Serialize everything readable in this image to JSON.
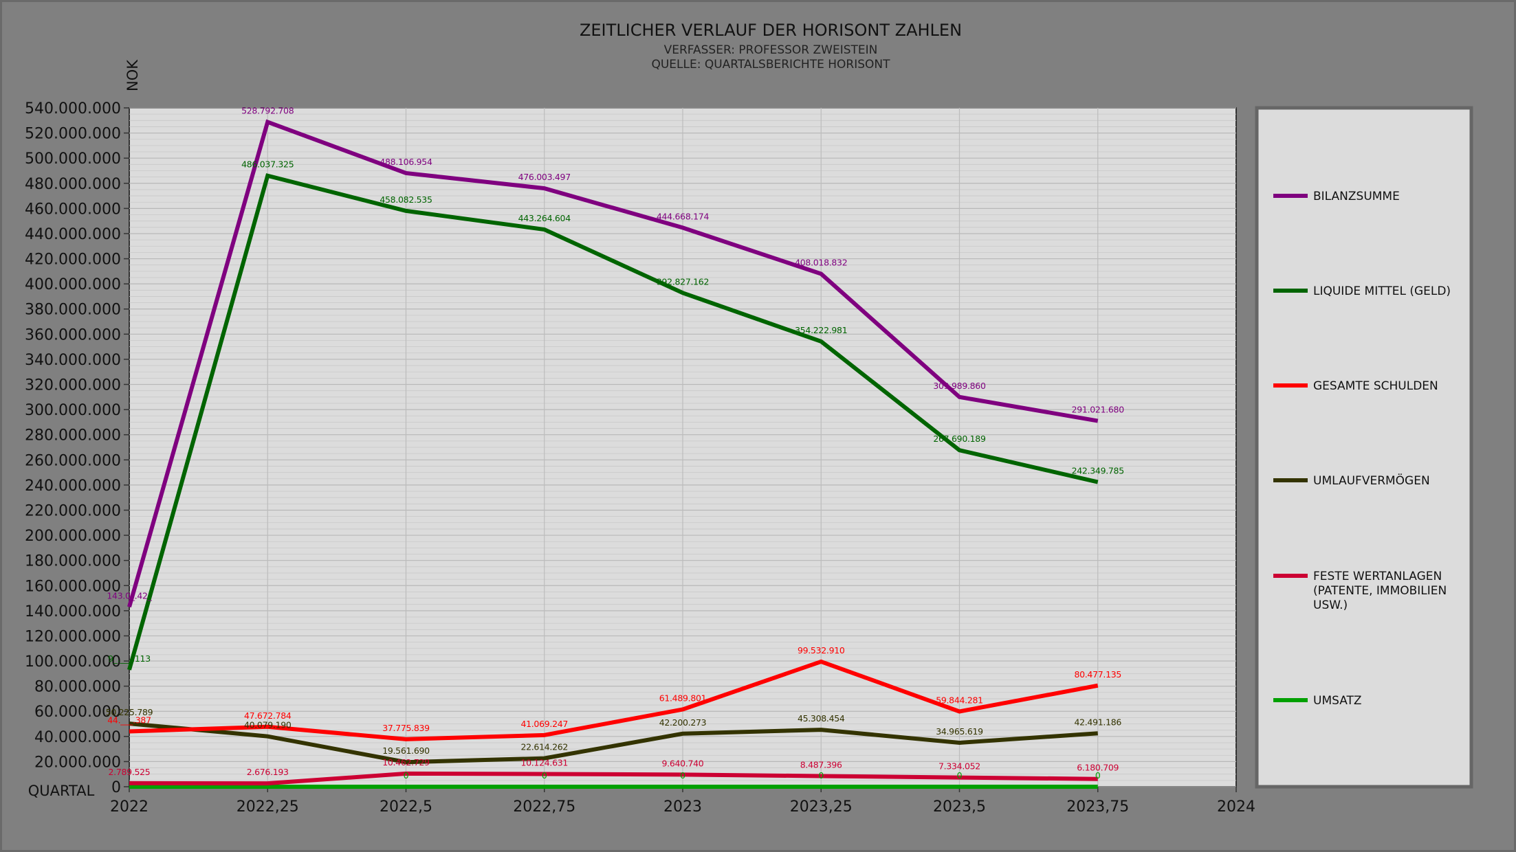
{
  "chart_data": {
    "type": "line",
    "title": "ZEITLICHER VERLAUF DER HORISONT ZAHLEN",
    "subtitles": [
      "VERFASSER: PROFESSOR ZWEISTEIN",
      "QUELLE: QUARTALSBERICHTE HORISONT"
    ],
    "xlabel": "QUARTAL",
    "ylabel": "NOK",
    "xlim": [
      2022,
      2024
    ],
    "ylim": [
      0,
      540000000
    ],
    "x_ticks": [
      "2022",
      "2022,25",
      "2022,5",
      "2022,75",
      "2023",
      "2023,25",
      "2023,5",
      "2023,75",
      "2024"
    ],
    "y_ticks": [
      "0",
      "20.000.000",
      "40.000.000",
      "60.000.000",
      "80.000.000",
      "100.000.000",
      "120.000.000",
      "140.000.000",
      "160.000.000",
      "180.000.000",
      "200.000.000",
      "220.000.000",
      "240.000.000",
      "260.000.000",
      "280.000.000",
      "300.000.000",
      "320.000.000",
      "340.000.000",
      "360.000.000",
      "380.000.000",
      "400.000.000",
      "420.000.000",
      "440.000.000",
      "460.000.000",
      "480.000.000",
      "500.000.000",
      "520.000.000",
      "540.000.000"
    ],
    "x": [
      2022,
      2022.25,
      2022.5,
      2022.75,
      2023,
      2023.25,
      2023.5,
      2023.75
    ],
    "grid": true,
    "legend_position": "right",
    "series": [
      {
        "name": "BILANZSUMME",
        "color": "#7f007f",
        "values": [
          143000000,
          528792708,
          488106954,
          476003497,
          444668174,
          408018832,
          309989860,
          291021680
        ],
        "labels": [
          "143.0_.42_",
          "528.792.708",
          "488.106.954",
          "476.003.497",
          "444.668.174",
          "408.018.832",
          "309.989.860",
          "291.021.680"
        ]
      },
      {
        "name": "LIQUIDE MITTEL (GELD)",
        "color": "#006400",
        "values": [
          93000000,
          486037325,
          458082535,
          443264604,
          392827162,
          354222981,
          267690189,
          242349785
        ],
        "labels": [
          "9_.___.113",
          "486.037.325",
          "458.082.535",
          "443.264.604",
          "392.827.162",
          "354.222.981",
          "267.690.189",
          "242.349.785"
        ]
      },
      {
        "name": "GESAMTE SCHULDEN",
        "color": "#ff0000",
        "values": [
          44000000,
          47672784,
          37775839,
          41069247,
          61489801,
          99532910,
          59844281,
          80477135
        ],
        "labels": [
          "44.___.387",
          "47.672.784",
          "37.775.839",
          "41.069.247",
          "61.489.801",
          "99.532.910",
          "59.844.281",
          "80.477.135"
        ]
      },
      {
        "name": "UMLAUFVERMÖGEN",
        "color": "#333300",
        "values": [
          50225789,
          40079190,
          19561690,
          22614262,
          42200273,
          45308454,
          34965619,
          42491186
        ],
        "labels": [
          "50.225.789",
          "40.079.190",
          "19.561.690",
          "22.614.262",
          "42.200.273",
          "45.308.454",
          "34.965.619",
          "42.491.186"
        ]
      },
      {
        "name": "FESTE WERTANLAGEN (PATENTE, IMMOBILIEN USW.)",
        "color": "#cc0033",
        "values": [
          2789525,
          2676193,
          10462729,
          10124631,
          9640740,
          8487396,
          7334052,
          6180709
        ],
        "labels": [
          "2.789.525",
          "2.676.193",
          "10.462.729",
          "10.124.631",
          "9.640.740",
          "8.487.396",
          "7.334.052",
          "6.180.709"
        ]
      },
      {
        "name": "UMSATZ",
        "color": "#00a000",
        "values": [
          0,
          0,
          0,
          0,
          0,
          0,
          0,
          0
        ],
        "labels": [
          "",
          "",
          "0",
          "0",
          "0",
          "0",
          "0",
          "0"
        ]
      }
    ]
  }
}
